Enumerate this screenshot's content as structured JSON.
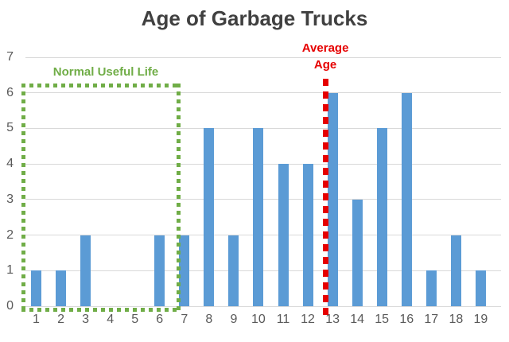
{
  "chart_data": {
    "type": "bar",
    "title": "Age of Garbage Trucks",
    "categories": [
      "1",
      "2",
      "3",
      "4",
      "5",
      "6",
      "7",
      "8",
      "9",
      "10",
      "11",
      "12",
      "13",
      "14",
      "15",
      "16",
      "17",
      "18",
      "19"
    ],
    "values": [
      1,
      1,
      2,
      0,
      0,
      2,
      2,
      5,
      2,
      5,
      4,
      4,
      6,
      3,
      5,
      6,
      1,
      2,
      1
    ],
    "xlabel": "",
    "ylabel": "",
    "ylim": [
      0,
      7
    ],
    "yticks": [
      0,
      1,
      2,
      3,
      4,
      5,
      6,
      7
    ],
    "grid": true,
    "legend": false,
    "colors": {
      "bar": "#5b9bd5",
      "gridline": "#d9d9d9",
      "axis_text": "#595959",
      "title_text": "#404040",
      "red_annotation": "#e60000",
      "green_annotation": "#70ad47"
    },
    "annotations": {
      "normal_useful_life": {
        "label": "Normal Useful Life",
        "shape": "dotted-rectangle",
        "x_range": [
          0.4,
          6.85
        ],
        "y_range": [
          -0.16,
          6.27
        ]
      },
      "average_age": {
        "label_line1": "Average",
        "label_line2": "Age",
        "shape": "dashed-vertical-line",
        "x": 12.71,
        "y_range": [
          -0.27,
          6.4
        ]
      }
    }
  }
}
